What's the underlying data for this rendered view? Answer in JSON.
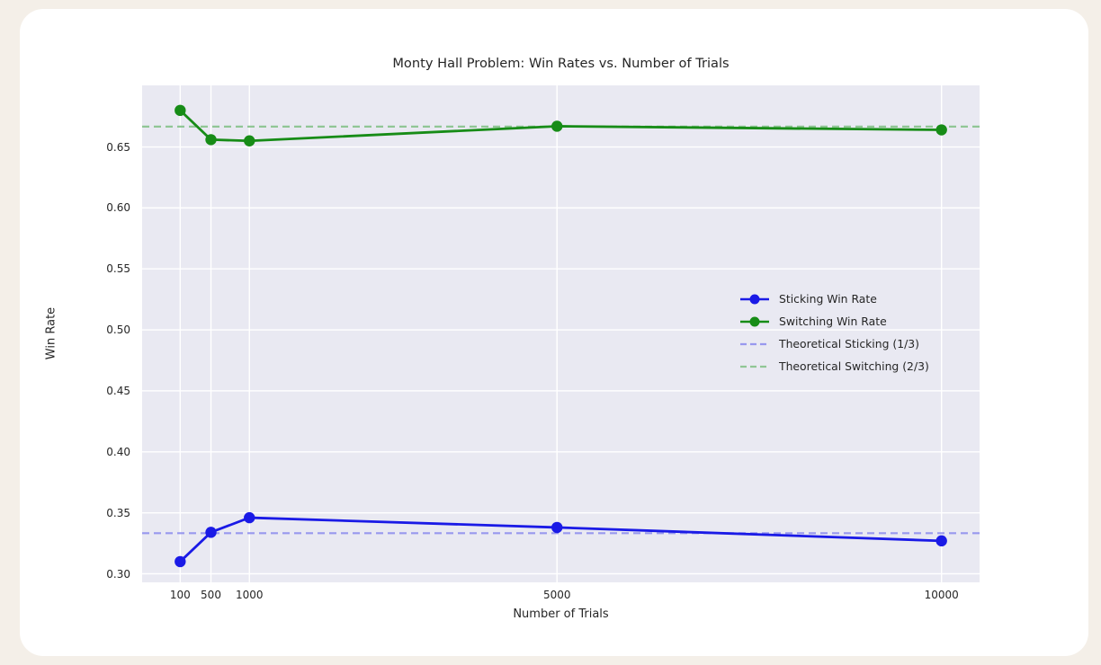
{
  "page": {
    "background_color": "#f4efe8",
    "card_background_color": "#ffffff"
  },
  "chart_data": {
    "type": "line",
    "title": "Monty Hall Problem: Win Rates vs. Number of Trials",
    "xlabel": "Number of Trials",
    "ylabel": "Win Rate",
    "x": [
      100,
      500,
      1000,
      5000,
      10000
    ],
    "series": [
      {
        "name": "Sticking Win Rate",
        "color": "#1a1ae6",
        "style": "solid",
        "marker": "circle",
        "values": [
          0.31,
          0.334,
          0.346,
          0.338,
          0.327
        ]
      },
      {
        "name": "Switching Win Rate",
        "color": "#178c17",
        "style": "solid",
        "marker": "circle",
        "values": [
          0.68,
          0.656,
          0.655,
          0.667,
          0.664
        ]
      }
    ],
    "hlines": [
      {
        "label": "Theoretical Sticking (1/3)",
        "value": 0.3333,
        "color": "#9898ee",
        "style": "dashed"
      },
      {
        "label": "Theoretical Switching (2/3)",
        "value": 0.6667,
        "color": "#90c695",
        "style": "dashed"
      }
    ],
    "xlim": [
      -395,
      10495
    ],
    "ylim": [
      0.293,
      0.7005
    ],
    "xticks": [
      100,
      500,
      1000,
      5000,
      10000
    ],
    "yticks": [
      0.3,
      0.35,
      0.4,
      0.45,
      0.5,
      0.55,
      0.6,
      0.65
    ],
    "grid": true,
    "grid_color": "#ffffff",
    "plot_background": "#e9e9f2",
    "text_color": "#262626",
    "legend_position": "center-right",
    "legend_frame": false
  }
}
